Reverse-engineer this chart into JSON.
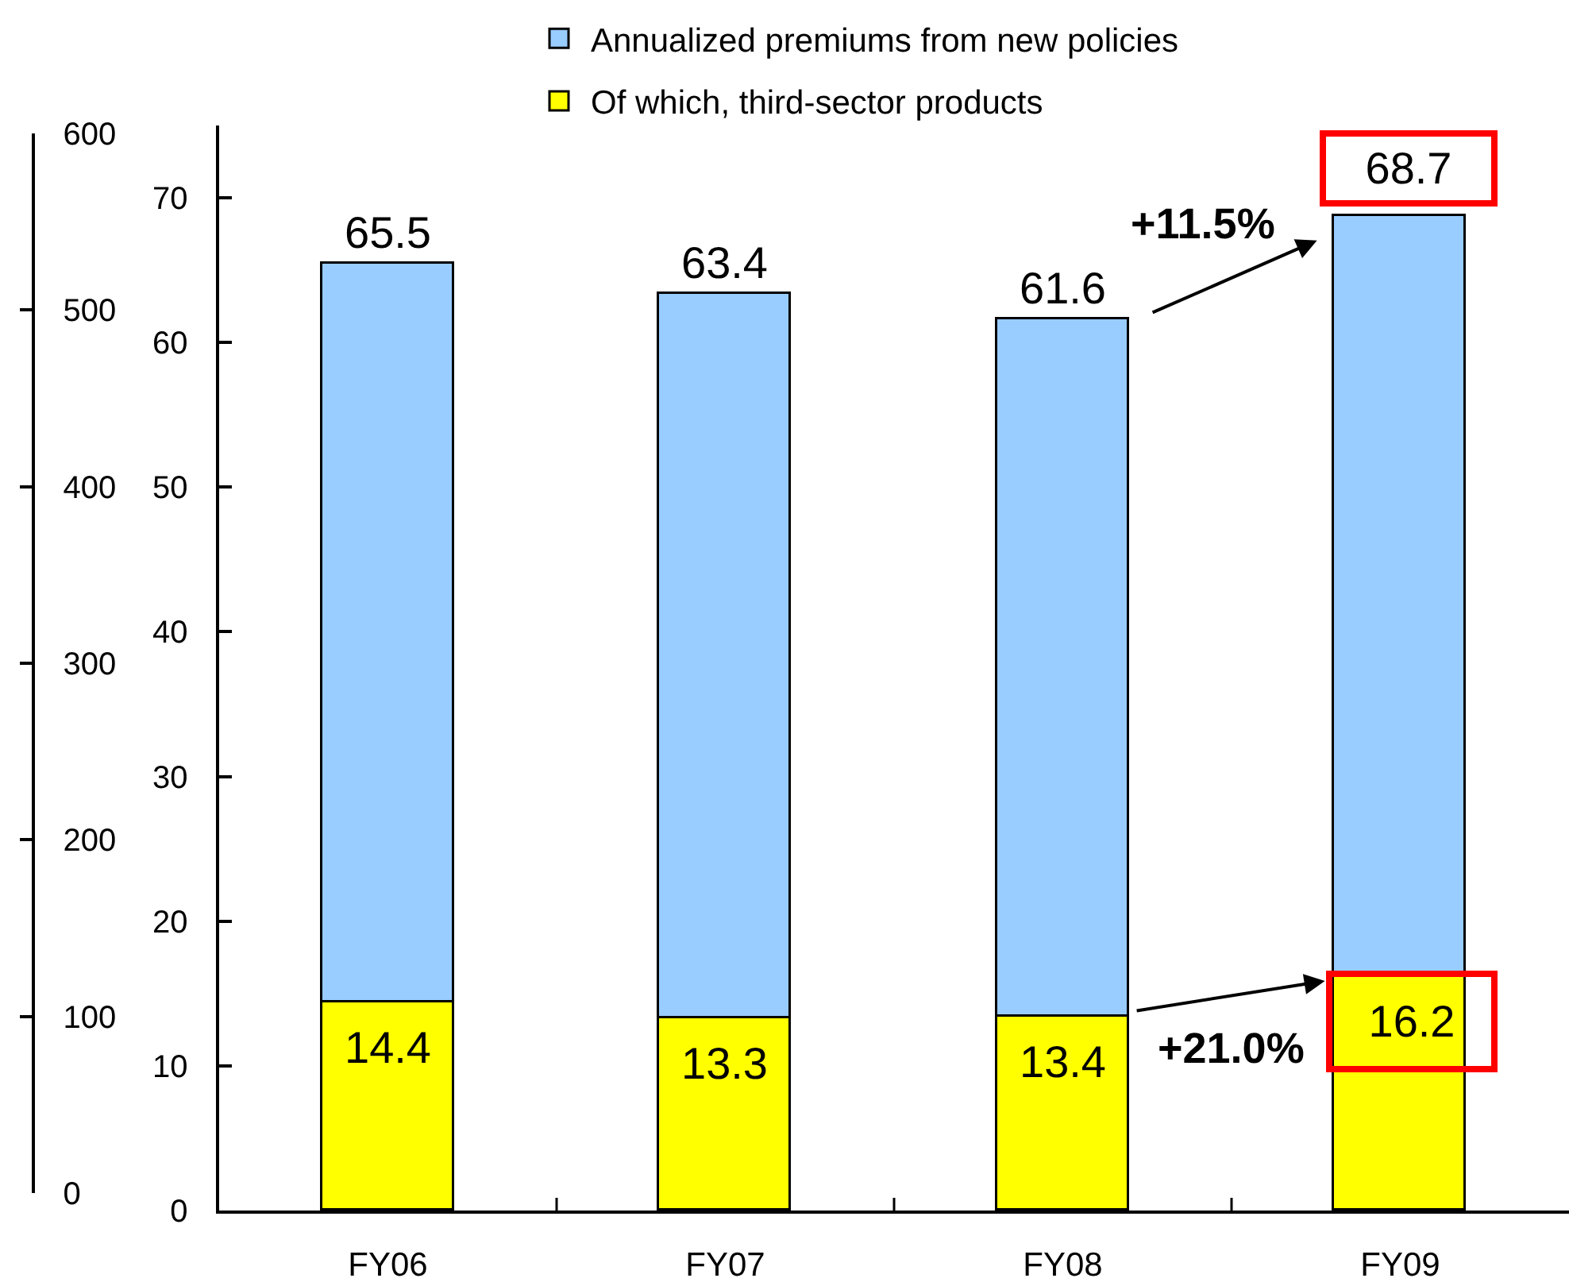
{
  "chart_data": {
    "type": "bar",
    "stacked": true,
    "categories": [
      "FY06",
      "FY07",
      "FY08",
      "FY09"
    ],
    "series": [
      {
        "name": "Of which, third-sector products",
        "color": "#ffff00",
        "values": [
          14.4,
          13.3,
          13.4,
          16.2
        ],
        "value_labels": [
          "14.4",
          "13.3",
          "13.4",
          "16.2"
        ]
      },
      {
        "name": "Annualized premiums from new policies",
        "color": "#99ccff",
        "values": [
          51.1,
          50.1,
          48.2,
          52.5
        ]
      }
    ],
    "totals": [
      "65.5",
      "63.4",
      "61.6",
      "68.7"
    ],
    "ylim": [
      0,
      75
    ],
    "yticks": [
      0,
      10,
      20,
      30,
      40,
      50,
      60,
      70
    ],
    "y2lim": [
      0,
      600
    ],
    "y2ticks": [
      0,
      100,
      200,
      300,
      400,
      500,
      600
    ],
    "annotations": [
      {
        "text": "+11.5%",
        "x": "FY09",
        "y": 68.7
      },
      {
        "text": "+21.0%",
        "x": "FY09",
        "y": 16.2
      }
    ],
    "legend": "top",
    "grid": false
  }
}
